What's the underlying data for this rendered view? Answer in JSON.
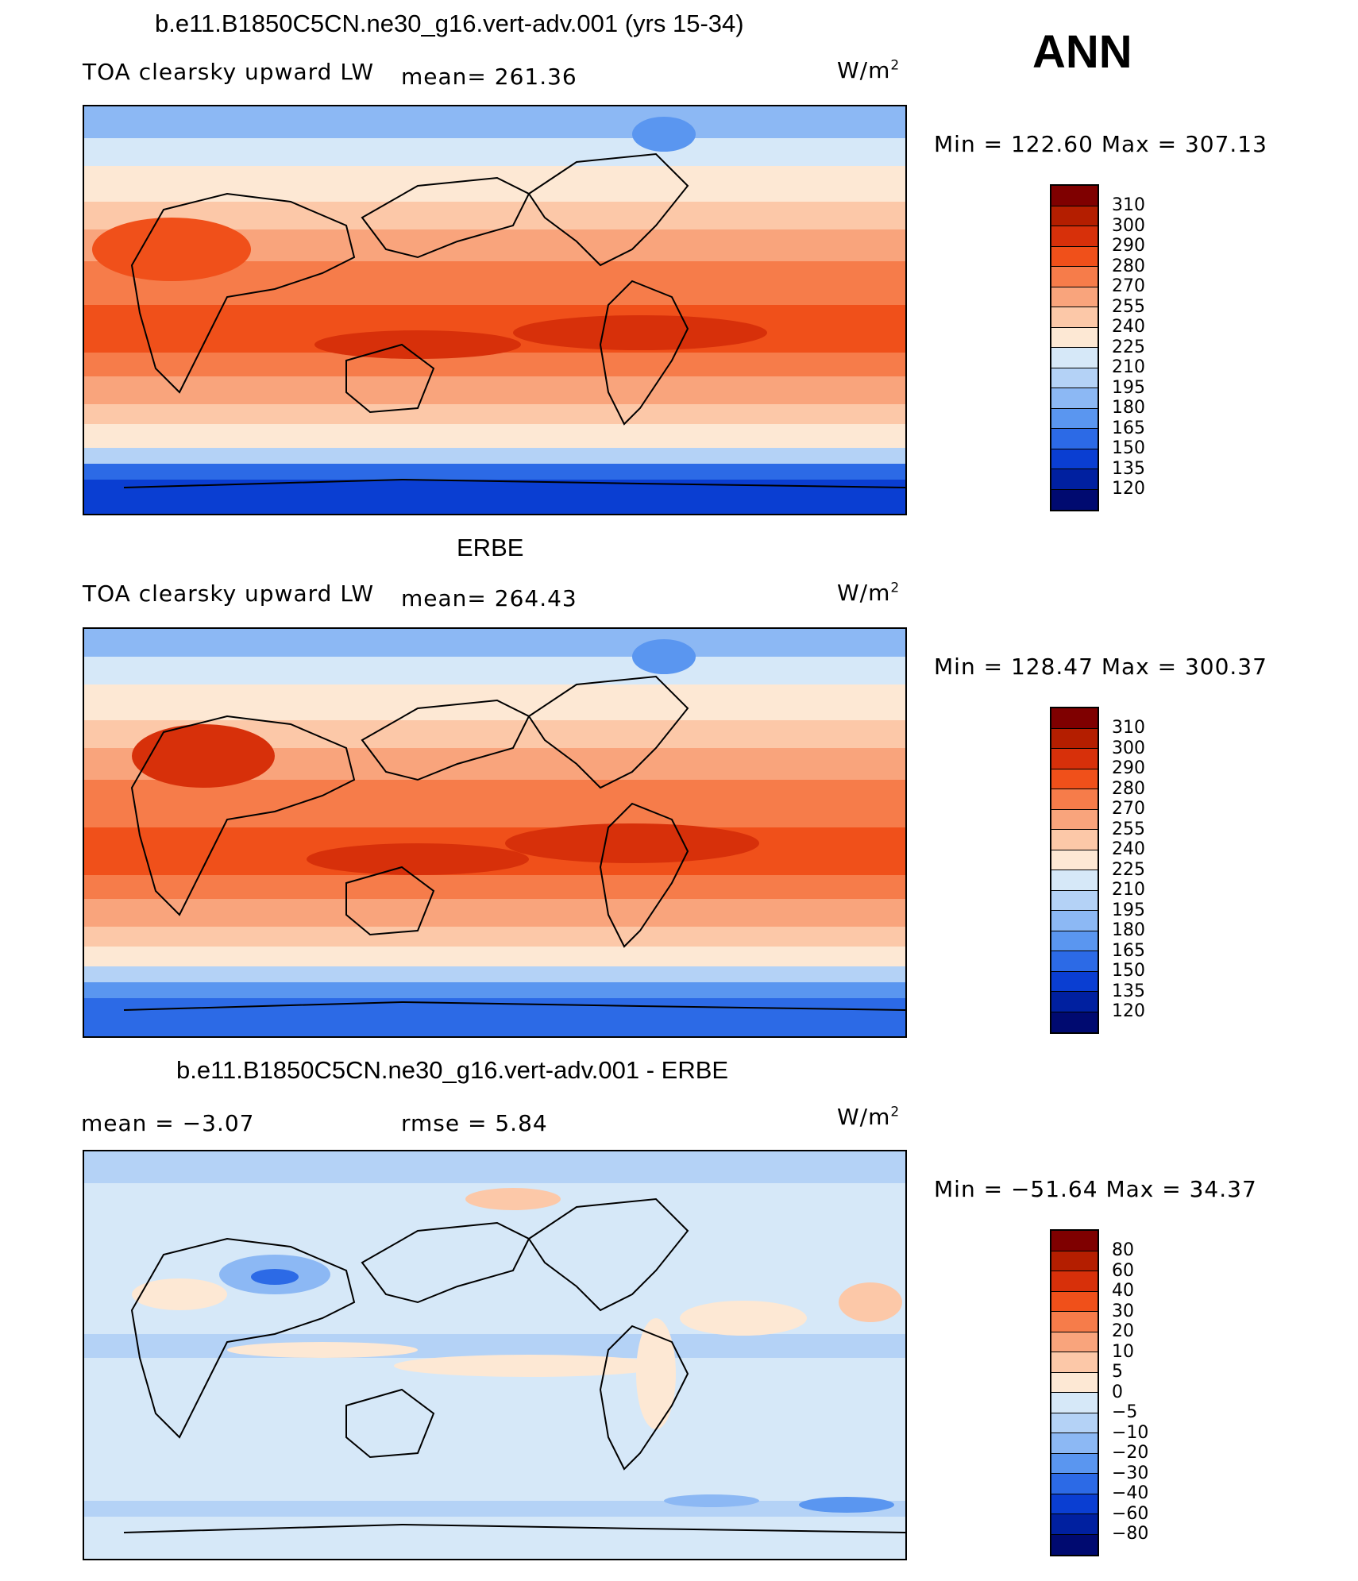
{
  "season": "ANN",
  "panels": [
    {
      "title": "b.e11.B1850C5CN.ne30_g16.vert-adv.001 (yrs 15-34)",
      "left_label": "TOA clearsky upward LW",
      "stat_label": "mean=  261.36",
      "units": "W/m",
      "units_sup": "2",
      "minmax": "Min  =  122.60  Max  =  307.13",
      "colorbar_labels": [
        "310",
        "300",
        "290",
        "280",
        "270",
        "255",
        "240",
        "225",
        "210",
        "195",
        "180",
        "165",
        "150",
        "135",
        "120"
      ],
      "colors": [
        "#7f0000",
        "#b41e00",
        "#d7300a",
        "#f0501a",
        "#f67c4a",
        "#f9a47c",
        "#fcc8a8",
        "#fde8d4",
        "#d6e8f8",
        "#b4d2f6",
        "#8cb8f4",
        "#5a96f0",
        "#2c6ae6",
        "#0a3ed2",
        "#0020a0",
        "#000a70"
      ]
    },
    {
      "title": "ERBE",
      "left_label": "TOA clearsky upward LW",
      "stat_label": "mean=  264.43",
      "units": "W/m",
      "units_sup": "2",
      "minmax": "Min  =  128.47  Max  =  300.37",
      "colorbar_labels": [
        "310",
        "300",
        "290",
        "280",
        "270",
        "255",
        "240",
        "225",
        "210",
        "195",
        "180",
        "165",
        "150",
        "135",
        "120"
      ],
      "colors": [
        "#7f0000",
        "#b41e00",
        "#d7300a",
        "#f0501a",
        "#f67c4a",
        "#f9a47c",
        "#fcc8a8",
        "#fde8d4",
        "#d6e8f8",
        "#b4d2f6",
        "#8cb8f4",
        "#5a96f0",
        "#2c6ae6",
        "#0a3ed2",
        "#0020a0",
        "#000a70"
      ]
    },
    {
      "title": "b.e11.B1850C5CN.ne30_g16.vert-adv.001 - ERBE",
      "left_label": "mean =   −3.07",
      "stat_label": "rmse =     5.84",
      "units": "W/m",
      "units_sup": "2",
      "minmax": "Min  =  −51.64  Max  =    34.37",
      "colorbar_labels": [
        "80",
        "60",
        "40",
        "30",
        "20",
        "10",
        "5",
        "0",
        "−5",
        "−10",
        "−20",
        "−30",
        "−40",
        "−60",
        "−80"
      ],
      "colors": [
        "#7f0000",
        "#b41e00",
        "#d7300a",
        "#f0501a",
        "#f67c4a",
        "#f9a47c",
        "#fcc8a8",
        "#fde8d4",
        "#d6e8f8",
        "#b4d2f6",
        "#8cb8f4",
        "#5a96f0",
        "#2c6ae6",
        "#0a3ed2",
        "#0020a0",
        "#000a70"
      ]
    }
  ]
}
